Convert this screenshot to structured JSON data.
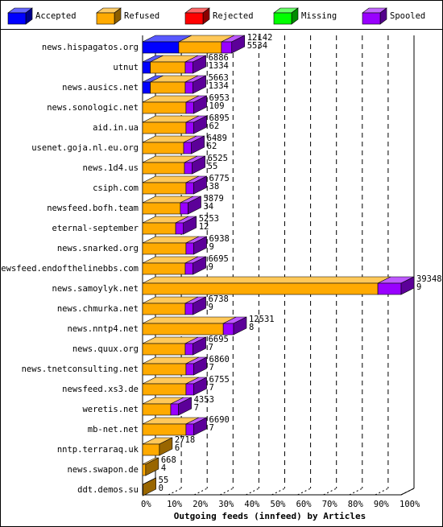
{
  "chart_data": {
    "type": "bar3d",
    "xlabel": "Outgoing feeds (innfeed) by Articles",
    "categories": [
      "news.hispagatos.org",
      "utnut",
      "news.ausics.net",
      "news.sonologic.net",
      "aid.in.ua",
      "usenet.goja.nl.eu.org",
      "news.1d4.us",
      "csiph.com",
      "newsfeed.bofh.team",
      "eternal-september",
      "news.snarked.org",
      "newsfeed.endofthelinebbs.com",
      "news.samoylyk.net",
      "news.chmurka.net",
      "news.nntp4.net",
      "news.quux.org",
      "news.tnetconsulting.net",
      "newsfeed.xs3.de",
      "weretis.net",
      "mb-net.net",
      "nntp.terraraq.uk",
      "news.swapon.de",
      "ddt.demos.su"
    ],
    "series": [
      {
        "name": "Accepted",
        "color": "#0000ff",
        "values": [
          14,
          3,
          3,
          0,
          0,
          0,
          0,
          0,
          0,
          0,
          0,
          0,
          0,
          0,
          0,
          0,
          0,
          0,
          0,
          0,
          0,
          0,
          0
        ]
      },
      {
        "name": "Refused",
        "color": "#ffaa00",
        "values": [
          16.5,
          13.5,
          13.5,
          16.8,
          16.8,
          15.9,
          16.2,
          16.8,
          14.6,
          12.8,
          16.8,
          16.5,
          91,
          16.5,
          31.2,
          16.5,
          16.8,
          16.8,
          10.9,
          16.8,
          6.5,
          1.2,
          0.2
        ]
      },
      {
        "name": "Rejected",
        "color": "#ff0000",
        "values": [
          0,
          0,
          0,
          0,
          0,
          0,
          0,
          0,
          0,
          0,
          0,
          0,
          0,
          0,
          0,
          0,
          0,
          0,
          0,
          0,
          0,
          0,
          0
        ]
      },
      {
        "name": "Missing",
        "color": "#00ff00",
        "values": [
          0,
          0,
          0,
          0,
          0,
          0,
          0,
          0,
          0,
          0,
          0,
          0,
          0,
          0,
          0,
          0,
          0,
          0,
          0,
          0,
          0,
          0,
          0
        ]
      },
      {
        "name": "Spooled",
        "color": "#9900ff",
        "values": [
          4,
          3,
          3,
          3,
          3,
          3,
          3,
          3,
          3,
          3,
          3,
          3,
          9,
          3,
          4,
          3,
          3,
          3,
          3,
          3,
          0,
          0,
          0
        ]
      }
    ],
    "articles": [
      12142,
      6886,
      5663,
      6953,
      6895,
      6489,
      6525,
      6775,
      5879,
      5253,
      6938,
      6695,
      39348,
      6738,
      12531,
      6695,
      6860,
      6755,
      4353,
      6690,
      2718,
      668,
      55
    ],
    "spooled": [
      5534,
      1334,
      1334,
      109,
      62,
      62,
      55,
      38,
      34,
      12,
      9,
      9,
      9,
      9,
      8,
      7,
      7,
      7,
      7,
      7,
      6,
      4,
      0
    ],
    "xlim": [
      0,
      100
    ],
    "xticks": [
      {
        "value": 0,
        "label": "0%"
      },
      {
        "value": 10,
        "label": "10%"
      },
      {
        "value": 20,
        "label": "20%"
      },
      {
        "value": 30,
        "label": "30%"
      },
      {
        "value": 40,
        "label": "40%"
      },
      {
        "value": 50,
        "label": "50%"
      },
      {
        "value": 60,
        "label": "60%"
      },
      {
        "value": 70,
        "label": "70%"
      },
      {
        "value": 80,
        "label": "80%"
      },
      {
        "value": 90,
        "label": "90%"
      },
      {
        "value": 100,
        "label": "100%"
      }
    ],
    "grid": true
  }
}
